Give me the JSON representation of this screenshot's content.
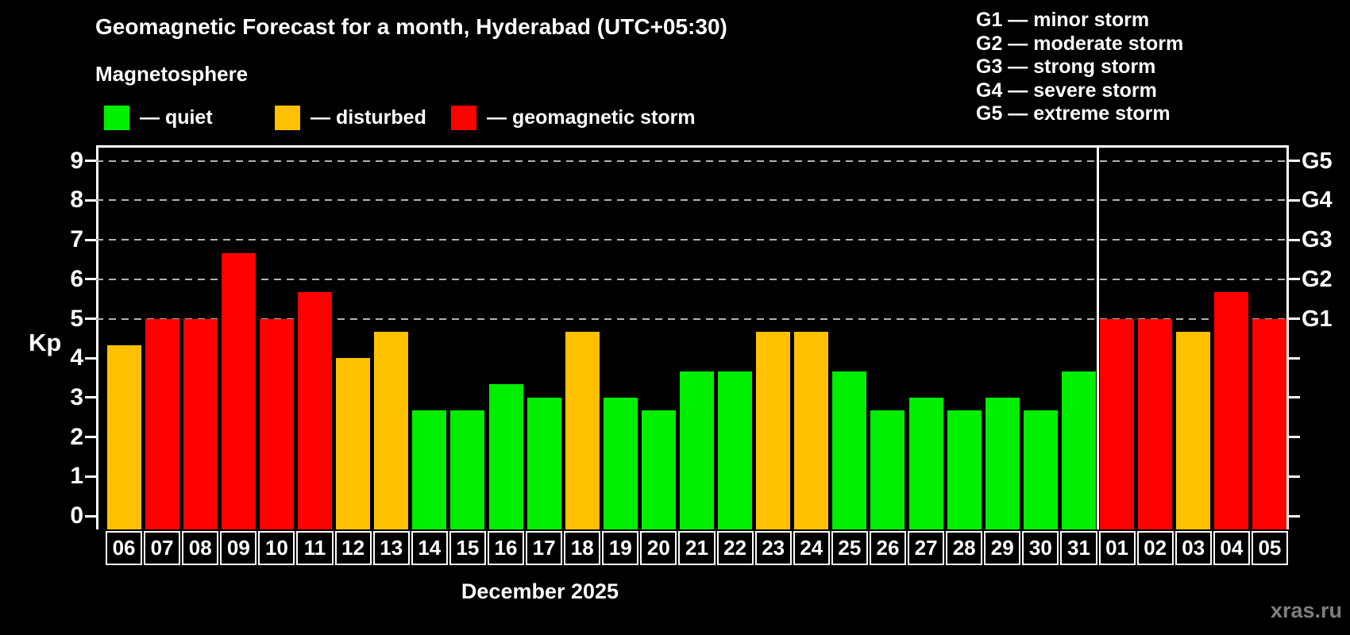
{
  "title": "Geomagnetic Forecast for a month, Hyderabad (UTC+05:30)",
  "subtitle": "Magnetosphere",
  "legend": {
    "items": [
      {
        "name": "quiet",
        "label": "— quiet",
        "state": "quiet"
      },
      {
        "name": "disturbed",
        "label": "— disturbed",
        "state": "disturbed"
      },
      {
        "name": "storm",
        "label": "— geomagnetic storm",
        "state": "storm"
      }
    ]
  },
  "g_legend": [
    "G1 — minor storm",
    "G2 — moderate storm",
    "G3 — strong storm",
    "G4 — severe storm",
    "G5 — extreme storm"
  ],
  "colors": {
    "quiet": "#00ee00",
    "disturbed": "#ffc000",
    "storm": "#ff0000",
    "background": "#000000",
    "grid": "#b3b3b3",
    "axis": "#ffffff",
    "watermark": "#7e7e7e"
  },
  "axis": {
    "ylabel": "Kp",
    "kp_ticks": [
      0,
      1,
      2,
      3,
      4,
      5,
      6,
      7,
      8,
      9
    ],
    "grid_levels": [
      5,
      6,
      7,
      8,
      9
    ],
    "g_labels": [
      {
        "label": "G1",
        "kp": 5
      },
      {
        "label": "G2",
        "kp": 6
      },
      {
        "label": "G3",
        "kp": 7
      },
      {
        "label": "G4",
        "kp": 8
      },
      {
        "label": "G5",
        "kp": 9
      }
    ]
  },
  "xlabel": "December 2025",
  "watermark": "xras.ru",
  "chart_data": {
    "type": "bar",
    "title": "Geomagnetic Forecast for a month, Hyderabad (UTC+05:30)",
    "ylabel": "Kp",
    "ylim": [
      0,
      9
    ],
    "legend_position": "top-left",
    "grid": "dashed horizontal at Kp 5-9",
    "separator_after_index": 25,
    "days": [
      {
        "date": "06",
        "kp": 4.33,
        "state": "disturbed"
      },
      {
        "date": "07",
        "kp": 5.0,
        "state": "storm"
      },
      {
        "date": "08",
        "kp": 5.0,
        "state": "storm"
      },
      {
        "date": "09",
        "kp": 6.67,
        "state": "storm"
      },
      {
        "date": "10",
        "kp": 5.0,
        "state": "storm"
      },
      {
        "date": "11",
        "kp": 5.67,
        "state": "storm"
      },
      {
        "date": "12",
        "kp": 4.0,
        "state": "disturbed"
      },
      {
        "date": "13",
        "kp": 4.67,
        "state": "disturbed"
      },
      {
        "date": "14",
        "kp": 2.67,
        "state": "quiet"
      },
      {
        "date": "15",
        "kp": 2.67,
        "state": "quiet"
      },
      {
        "date": "16",
        "kp": 3.33,
        "state": "quiet"
      },
      {
        "date": "17",
        "kp": 3.0,
        "state": "quiet"
      },
      {
        "date": "18",
        "kp": 4.67,
        "state": "disturbed"
      },
      {
        "date": "19",
        "kp": 3.0,
        "state": "quiet"
      },
      {
        "date": "20",
        "kp": 2.67,
        "state": "quiet"
      },
      {
        "date": "21",
        "kp": 3.67,
        "state": "quiet"
      },
      {
        "date": "22",
        "kp": 3.67,
        "state": "quiet"
      },
      {
        "date": "23",
        "kp": 4.67,
        "state": "disturbed"
      },
      {
        "date": "24",
        "kp": 4.67,
        "state": "disturbed"
      },
      {
        "date": "25",
        "kp": 3.67,
        "state": "quiet"
      },
      {
        "date": "26",
        "kp": 2.67,
        "state": "quiet"
      },
      {
        "date": "27",
        "kp": 3.0,
        "state": "quiet"
      },
      {
        "date": "28",
        "kp": 2.67,
        "state": "quiet"
      },
      {
        "date": "29",
        "kp": 3.0,
        "state": "quiet"
      },
      {
        "date": "30",
        "kp": 2.67,
        "state": "quiet"
      },
      {
        "date": "31",
        "kp": 3.67,
        "state": "quiet"
      },
      {
        "date": "01",
        "kp": 5.0,
        "state": "storm"
      },
      {
        "date": "02",
        "kp": 5.0,
        "state": "storm"
      },
      {
        "date": "03",
        "kp": 4.67,
        "state": "disturbed"
      },
      {
        "date": "04",
        "kp": 5.67,
        "state": "storm"
      },
      {
        "date": "05",
        "kp": 5.0,
        "state": "storm"
      }
    ]
  }
}
